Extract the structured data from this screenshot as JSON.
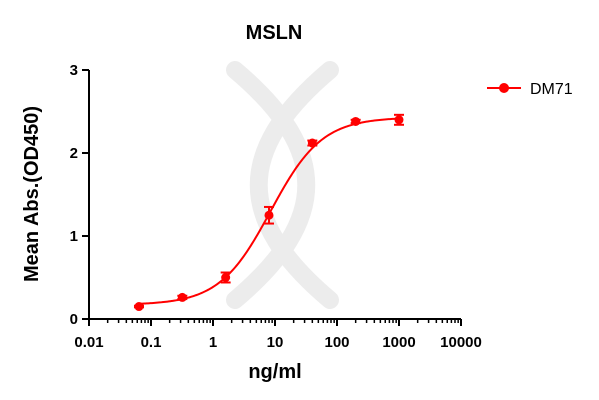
{
  "chart_data": {
    "type": "scatter",
    "title": "MSLN",
    "xlabel": "ng/ml",
    "ylabel": "Mean Abs.(OD450)",
    "x_scale": "log",
    "xlim": [
      0.01,
      10000
    ],
    "ylim": [
      0,
      3
    ],
    "x_ticks": [
      "0.01",
      "0.1",
      "1",
      "10",
      "100",
      "1000",
      "10000"
    ],
    "y_ticks": [
      "0",
      "1",
      "2",
      "3"
    ],
    "grid": false,
    "legend_position": "top-right",
    "series": [
      {
        "name": "DM71",
        "color": "#ff0000",
        "marker": "circle",
        "fit": "sigmoidal 4PL",
        "x": [
          0.064,
          0.32,
          1.6,
          8,
          40,
          200,
          1000
        ],
        "y": [
          0.15,
          0.26,
          0.5,
          1.25,
          2.12,
          2.38,
          2.4
        ],
        "error": [
          0.01,
          0.02,
          0.06,
          0.1,
          0.03,
          0.02,
          0.06
        ]
      }
    ]
  }
}
